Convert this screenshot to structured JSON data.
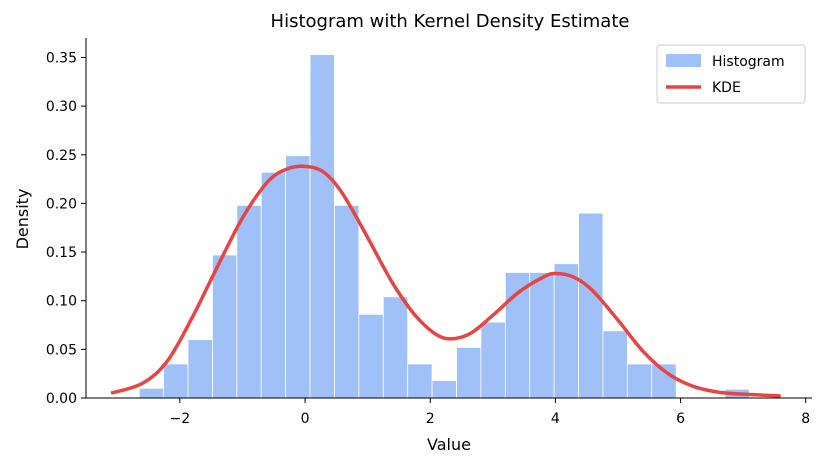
{
  "chart_data": {
    "type": "bar",
    "title": "Histogram with Kernel Density Estimate",
    "xlabel": "Value",
    "ylabel": "Density",
    "xlim": [
      -3.5,
      8.1
    ],
    "ylim": [
      0,
      0.37
    ],
    "xticks": [
      -2,
      0,
      2,
      4,
      6,
      8
    ],
    "xtick_labels": [
      "−2",
      "0",
      "2",
      "4",
      "6",
      "8"
    ],
    "yticks": [
      0.0,
      0.05,
      0.1,
      0.15,
      0.2,
      0.25,
      0.3,
      0.35
    ],
    "ytick_labels": [
      "0.00",
      "0.05",
      "0.10",
      "0.15",
      "0.20",
      "0.25",
      "0.30",
      "0.35"
    ],
    "grid": false,
    "legend_position": "top-right",
    "series": [
      {
        "name": "Histogram",
        "kind": "histogram",
        "color": "#a0c0f8",
        "bin_start": -2.65,
        "bin_width": 0.39,
        "values": [
          0.01,
          0.035,
          0.06,
          0.147,
          0.198,
          0.232,
          0.249,
          0.353,
          0.198,
          0.086,
          0.104,
          0.035,
          0.018,
          0.052,
          0.078,
          0.129,
          0.129,
          0.138,
          0.19,
          0.069,
          0.035,
          0.035,
          0,
          0,
          0.009
        ]
      },
      {
        "name": "KDE",
        "kind": "line",
        "color": "#e54545",
        "x": [
          -3.1,
          -2.6,
          -2.2,
          -1.8,
          -1.4,
          -1.0,
          -0.6,
          -0.3,
          0.0,
          0.3,
          0.6,
          1.0,
          1.4,
          1.8,
          2.2,
          2.6,
          3.0,
          3.4,
          3.8,
          4.0,
          4.3,
          4.6,
          5.0,
          5.4,
          5.8,
          6.2,
          6.6,
          7.0,
          7.6
        ],
        "y": [
          0.005,
          0.015,
          0.038,
          0.083,
          0.135,
          0.185,
          0.222,
          0.235,
          0.238,
          0.232,
          0.21,
          0.165,
          0.118,
          0.082,
          0.062,
          0.065,
          0.085,
          0.108,
          0.124,
          0.128,
          0.124,
          0.11,
          0.08,
          0.048,
          0.025,
          0.012,
          0.006,
          0.004,
          0.002
        ]
      }
    ]
  }
}
